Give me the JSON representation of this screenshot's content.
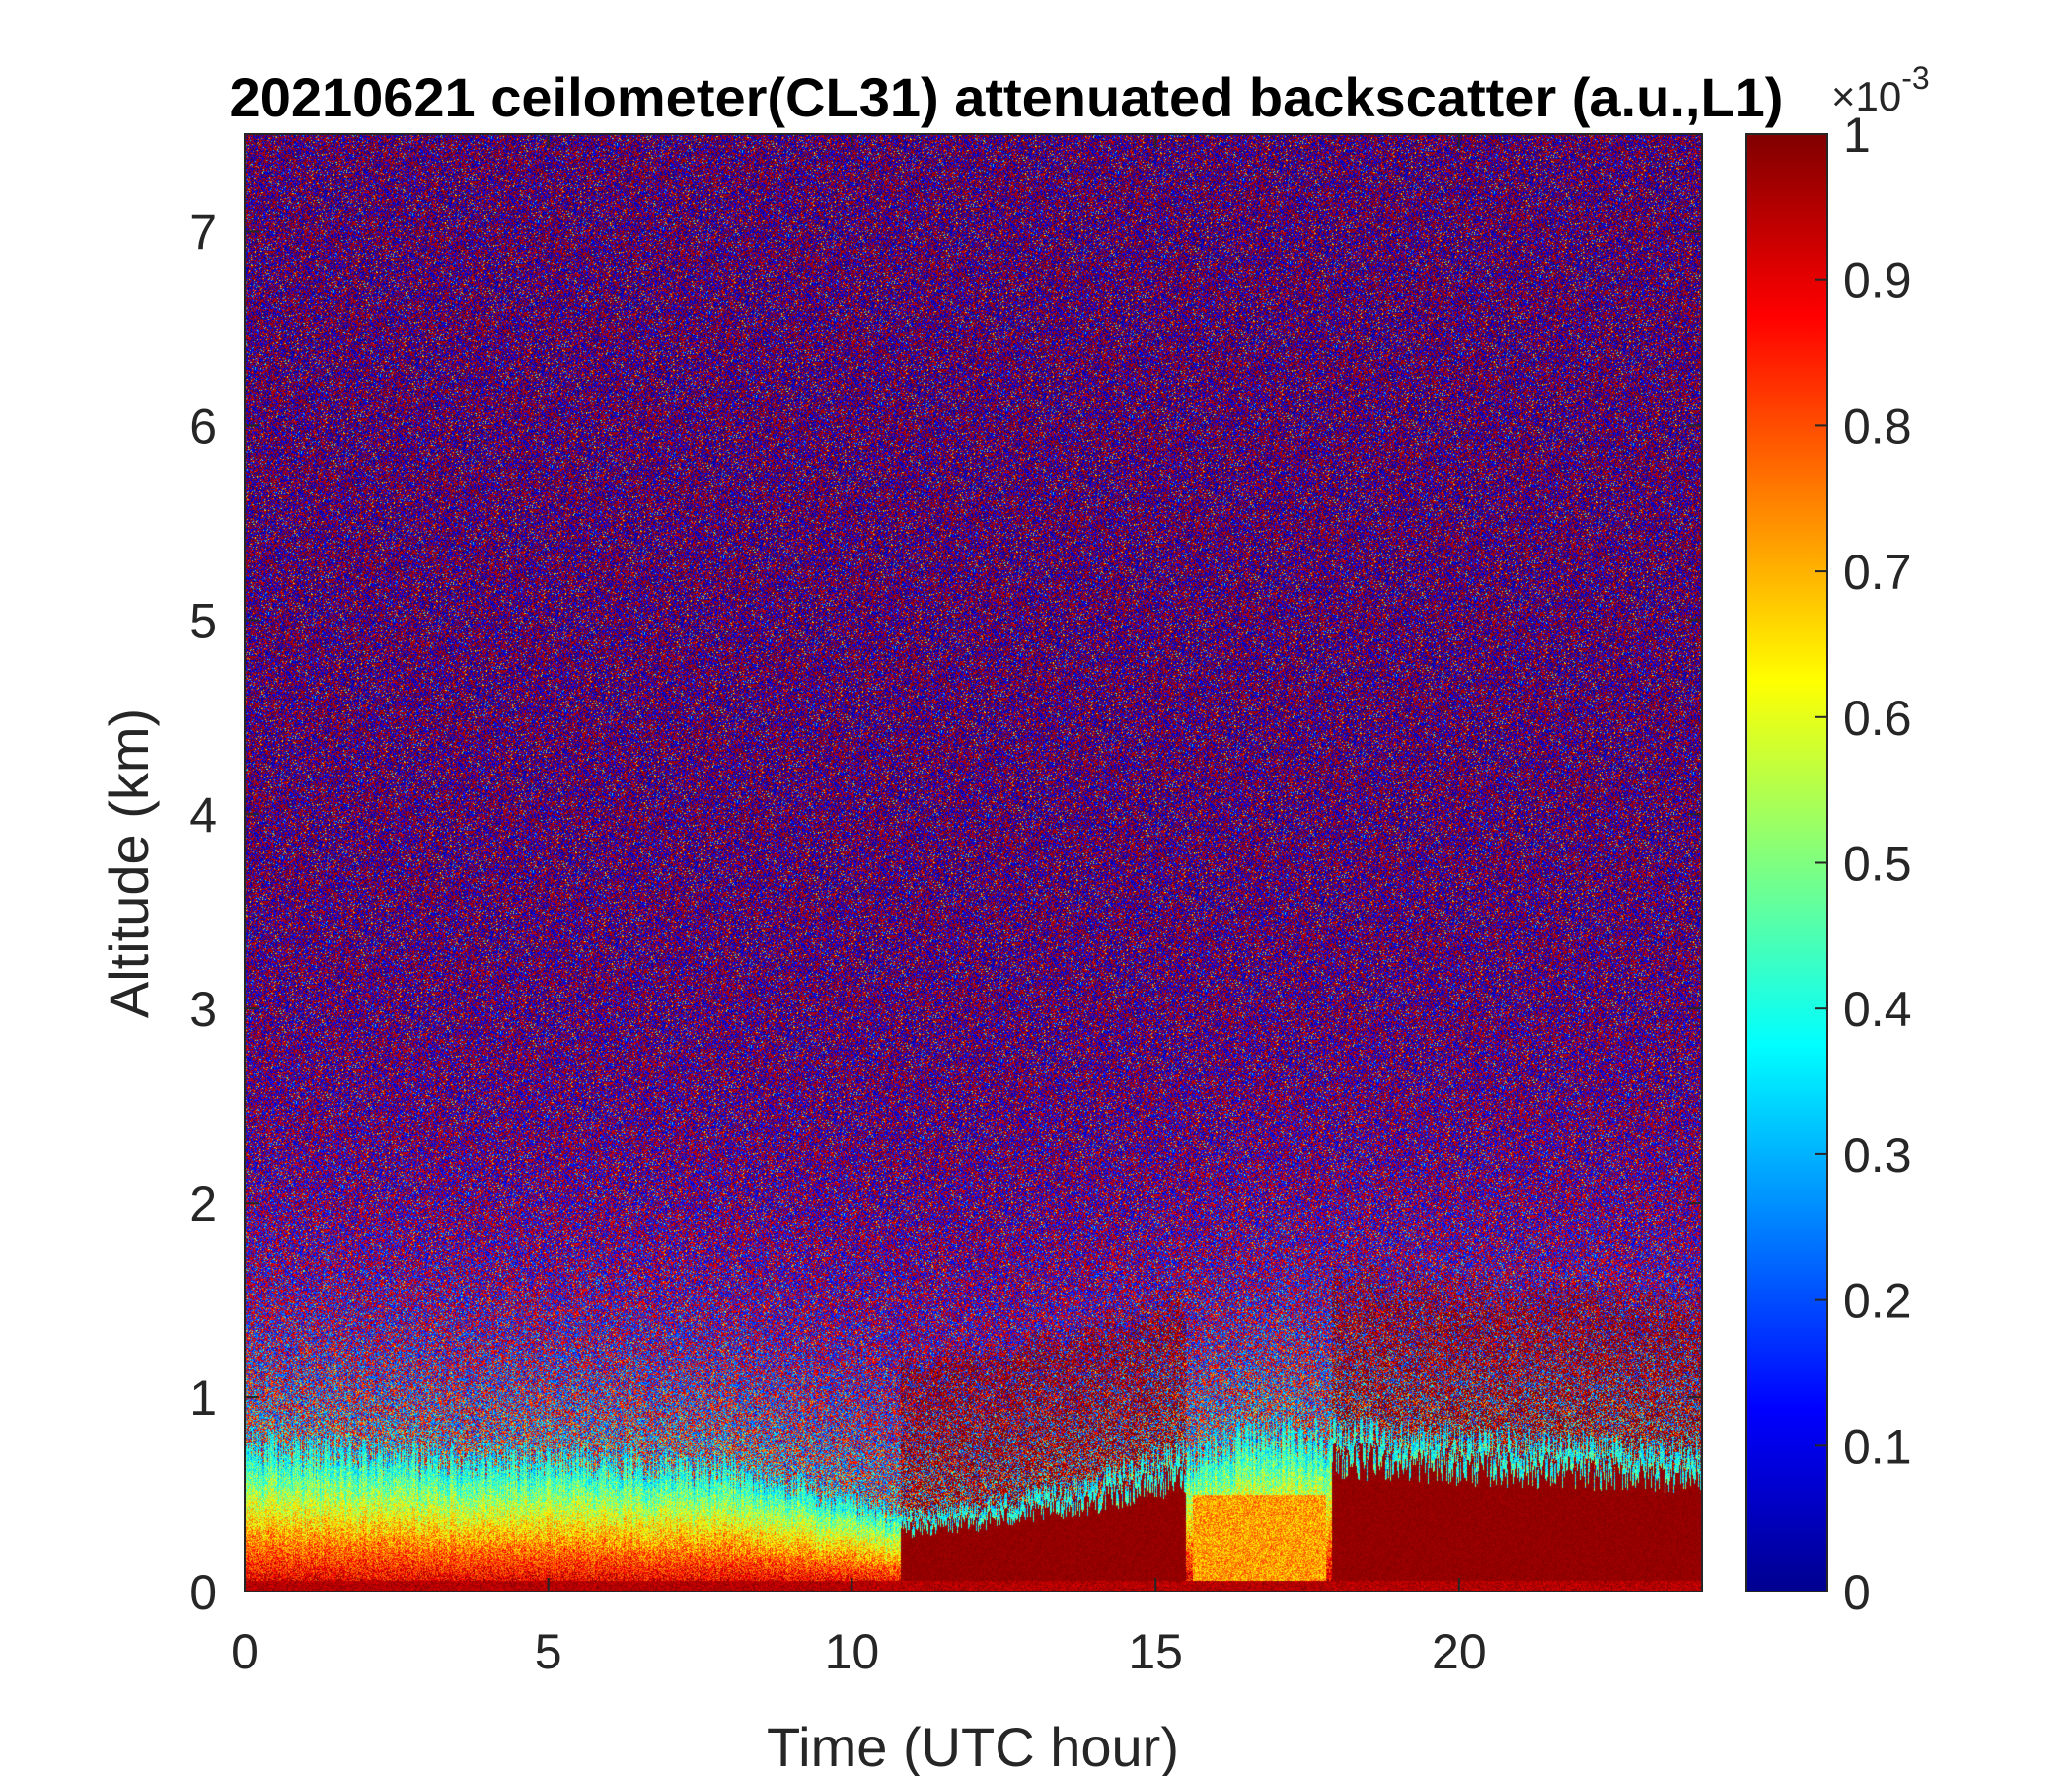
{
  "chart_data": {
    "type": "heatmap",
    "title": "20210621 ceilometer(CL31) attenuated backscatter (a.u.,L1)",
    "xlabel": "Time (UTC hour)",
    "ylabel": "Altitude (km)",
    "xlim": [
      0,
      24
    ],
    "ylim": [
      0,
      7.5
    ],
    "x_ticks": [
      0,
      5,
      10,
      15,
      20
    ],
    "x_tick_labels": [
      "0",
      "5",
      "10",
      "15",
      "20"
    ],
    "y_ticks": [
      0,
      1,
      2,
      3,
      4,
      5,
      6,
      7
    ],
    "y_tick_labels": [
      "0",
      "1",
      "2",
      "3",
      "4",
      "5",
      "6",
      "7"
    ],
    "colormap": "jet",
    "colorbar": {
      "range": [
        0,
        1
      ],
      "ticks": [
        0,
        0.1,
        0.2,
        0.3,
        0.4,
        0.5,
        0.6,
        0.7,
        0.8,
        0.9,
        1
      ],
      "tick_labels": [
        "0",
        "0.1",
        "0.2",
        "0.3",
        "0.4",
        "0.5",
        "0.6",
        "0.7",
        "0.8",
        "0.9",
        "1"
      ],
      "multiplier_base": "×10",
      "multiplier_exponent": "-3"
    },
    "features": {
      "boundary_layer_top_km": [
        [
          0,
          0.75
        ],
        [
          2,
          0.7
        ],
        [
          4,
          0.68
        ],
        [
          6,
          0.68
        ],
        [
          8,
          0.62
        ],
        [
          9,
          0.55
        ],
        [
          10,
          0.45
        ],
        [
          11,
          0.38
        ],
        [
          12,
          0.42
        ],
        [
          13,
          0.48
        ],
        [
          14,
          0.55
        ],
        [
          15,
          0.65
        ],
        [
          16,
          0.75
        ],
        [
          17,
          0.8
        ],
        [
          18,
          0.8
        ],
        [
          20,
          0.75
        ],
        [
          22,
          0.72
        ],
        [
          24,
          0.7
        ]
      ],
      "saturated_low_cloud_hours": [
        [
          10.8,
          15.5
        ],
        [
          17.9,
          24
        ]
      ],
      "bright_layer_hours": [
        [
          15.6,
          17.8
        ]
      ]
    }
  }
}
